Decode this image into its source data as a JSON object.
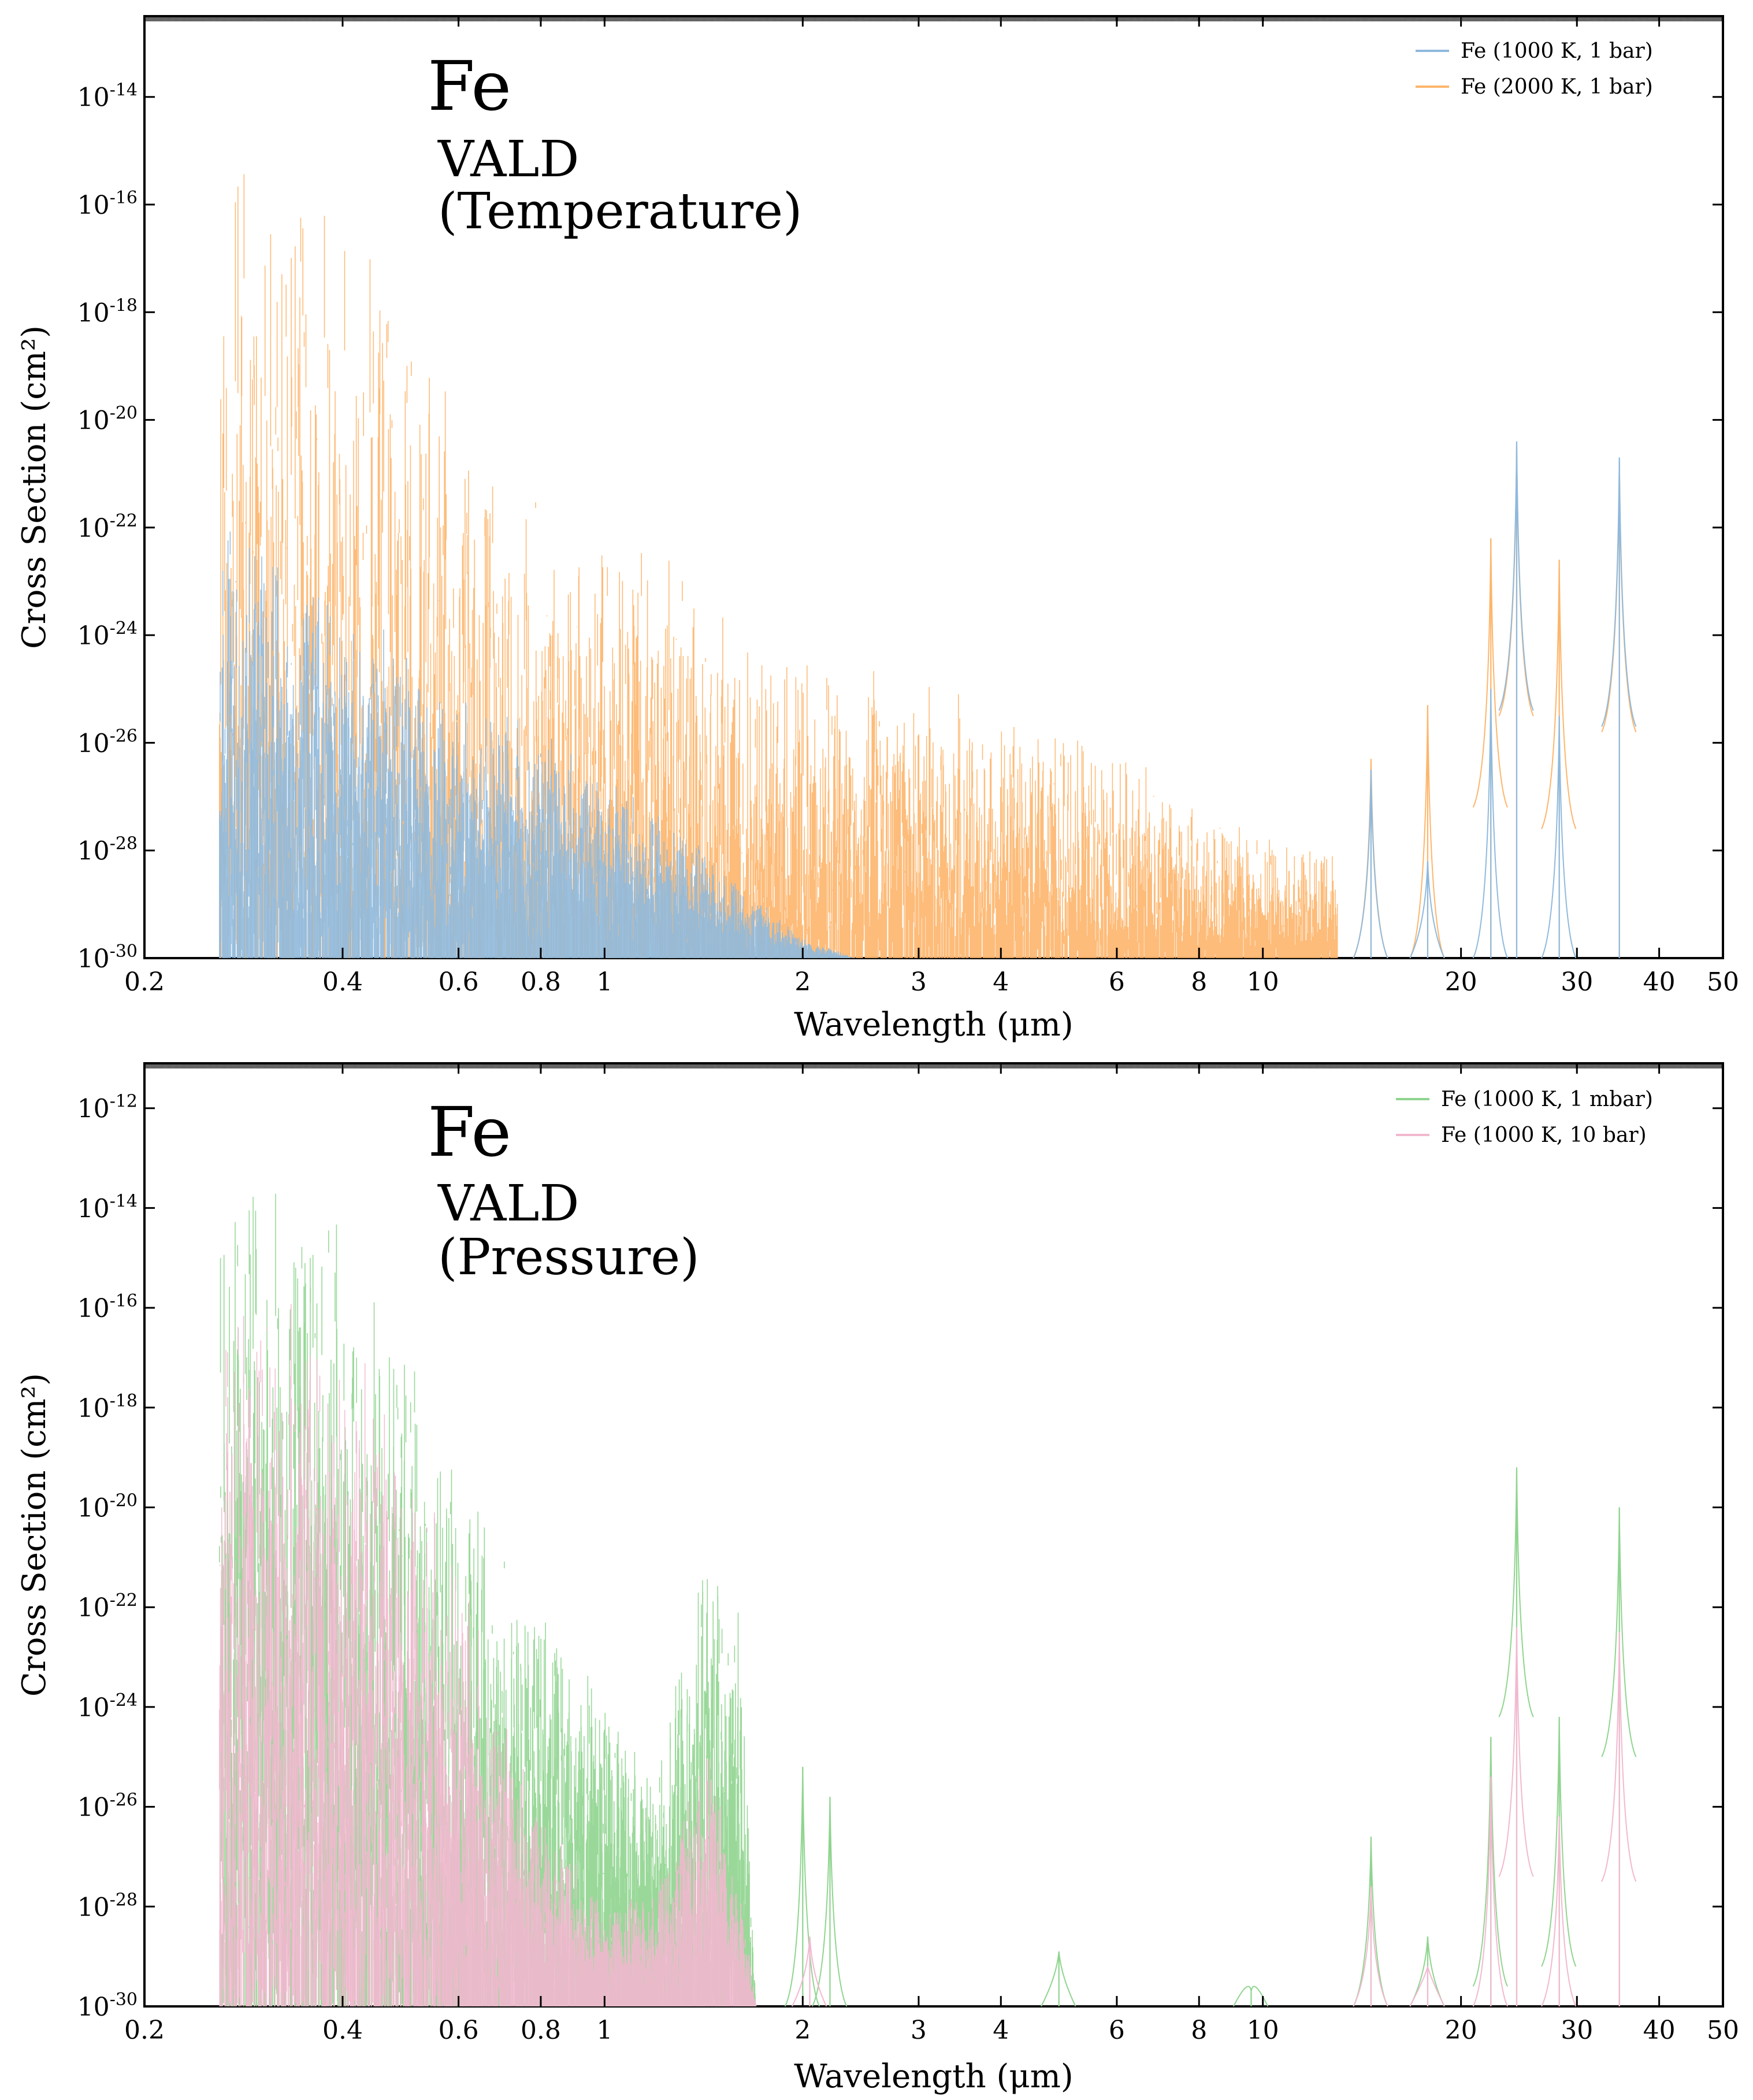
{
  "chart_data": [
    {
      "type": "line",
      "title": "Fe",
      "subtitle_line1": "VALD",
      "subtitle_line2": "(Temperature)",
      "xlabel": "Wavelength (μm)",
      "ylabel": "Cross Section (cm²)",
      "xscale": "log",
      "yscale": "log",
      "xlim": [
        0.2,
        50
      ],
      "ylim": [
        1e-30,
        1e-12
      ],
      "x_ticks": [
        0.2,
        0.4,
        0.6,
        0.8,
        1,
        2,
        3,
        4,
        6,
        8,
        10,
        20,
        30,
        40,
        50
      ],
      "x_tick_labels": [
        "0.2",
        "0.4",
        "0.6",
        "0.8",
        "1",
        "2",
        "3",
        "4",
        "6",
        "8",
        "10",
        "20",
        "30",
        "40",
        "50"
      ],
      "y_ticks": [
        1e-30,
        1e-28,
        1e-26,
        1e-24,
        1e-22,
        1e-20,
        1e-18,
        1e-16,
        1e-14
      ],
      "y_tick_exponents": [
        "-30",
        "-28",
        "-26",
        "-24",
        "-22",
        "-20",
        "-18",
        "-16",
        "-14"
      ],
      "legend": "top-right",
      "series": [
        {
          "name": "Fe (1000 K, 1 bar)",
          "color": "#8fb9dd",
          "envelope": [
            [
              0.26,
              -21.5
            ],
            [
              0.3,
              -22.2
            ],
            [
              0.35,
              -22.6
            ],
            [
              0.4,
              -23.2
            ],
            [
              0.5,
              -24.2
            ],
            [
              0.6,
              -25.0
            ],
            [
              0.8,
              -25.6
            ],
            [
              1.0,
              -26.6
            ],
            [
              1.3,
              -27.5
            ],
            [
              1.6,
              -28.6
            ],
            [
              2.0,
              -29.6
            ],
            [
              2.4,
              -30.0
            ]
          ],
          "peaks": [
            {
              "x": 14.6,
              "y": -26.5
            },
            {
              "x": 17.8,
              "y": -28.2
            },
            {
              "x": 22.2,
              "y": -25.0
            },
            {
              "x": 24.3,
              "y": -20.4
            },
            {
              "x": 28.2,
              "y": -25.5
            },
            {
              "x": 34.8,
              "y": -20.7
            }
          ]
        },
        {
          "name": "Fe (2000 K, 1 bar)",
          "color": "#fdb56b",
          "envelope": [
            [
              0.26,
              -14.0
            ],
            [
              0.3,
              -14.6
            ],
            [
              0.35,
              -15.0
            ],
            [
              0.4,
              -15.8
            ],
            [
              0.45,
              -16.8
            ],
            [
              0.5,
              -17.6
            ],
            [
              0.55,
              -18.6
            ],
            [
              0.6,
              -19.6
            ],
            [
              0.7,
              -20.6
            ],
            [
              0.8,
              -21.2
            ],
            [
              1.0,
              -21.9
            ],
            [
              1.2,
              -22.4
            ],
            [
              1.5,
              -23.2
            ],
            [
              2.0,
              -24.2
            ],
            [
              3.0,
              -24.7
            ],
            [
              4.0,
              -25.2
            ],
            [
              5.0,
              -25.7
            ],
            [
              6.5,
              -26.3
            ],
            [
              8.0,
              -27.1
            ],
            [
              10.0,
              -27.6
            ],
            [
              13.0,
              -28.0
            ]
          ],
          "peaks": [
            {
              "x": 14.6,
              "y": -26.3
            },
            {
              "x": 17.8,
              "y": -25.3
            },
            {
              "x": 22.2,
              "y": -22.2
            },
            {
              "x": 24.3,
              "y": -20.5
            },
            {
              "x": 28.2,
              "y": -22.6
            },
            {
              "x": 34.8,
              "y": -20.8
            }
          ]
        }
      ]
    },
    {
      "type": "line",
      "title": "Fe",
      "subtitle_line1": "VALD",
      "subtitle_line2": "(Pressure)",
      "xlabel": "Wavelength (μm)",
      "ylabel": "Cross Section (cm²)",
      "xscale": "log",
      "yscale": "log",
      "xlim": [
        0.2,
        50
      ],
      "ylim": [
        1e-30,
        1e-11
      ],
      "x_ticks": [
        0.2,
        0.4,
        0.6,
        0.8,
        1,
        2,
        3,
        4,
        6,
        8,
        10,
        20,
        30,
        40,
        50
      ],
      "x_tick_labels": [
        "0.2",
        "0.4",
        "0.6",
        "0.8",
        "1",
        "2",
        "3",
        "4",
        "6",
        "8",
        "10",
        "20",
        "30",
        "40",
        "50"
      ],
      "y_ticks": [
        1e-30,
        1e-28,
        1e-26,
        1e-24,
        1e-22,
        1e-20,
        1e-18,
        1e-16,
        1e-14,
        1e-12
      ],
      "y_tick_exponents": [
        "-30",
        "-28",
        "-26",
        "-24",
        "-22",
        "-20",
        "-18",
        "-16",
        "-14",
        "-12"
      ],
      "legend": "top-right",
      "series": [
        {
          "name": "Fe (1000 K, 1 mbar)",
          "color": "#8fd48f",
          "envelope": [
            [
              0.26,
              -12.2
            ],
            [
              0.3,
              -12.8
            ],
            [
              0.35,
              -13.6
            ],
            [
              0.4,
              -14.4
            ],
            [
              0.45,
              -15.6
            ],
            [
              0.5,
              -16.5
            ],
            [
              0.55,
              -18.0
            ],
            [
              0.6,
              -19.2
            ],
            [
              0.7,
              -21.0
            ],
            [
              0.8,
              -21.8
            ],
            [
              1.0,
              -23.6
            ],
            [
              1.2,
              -24.6
            ],
            [
              1.45,
              -20.2
            ],
            [
              1.6,
              -21.6
            ],
            [
              1.7,
              -30.0
            ]
          ],
          "peaks": [
            {
              "x": 2.0,
              "y": -25.2
            },
            {
              "x": 2.2,
              "y": -25.8
            },
            {
              "x": 4.9,
              "y": -28.9
            },
            {
              "x": 9.6,
              "y": -29.7
            },
            {
              "x": 14.6,
              "y": -26.6
            },
            {
              "x": 17.8,
              "y": -28.6
            },
            {
              "x": 22.2,
              "y": -24.6
            },
            {
              "x": 24.3,
              "y": -19.2
            },
            {
              "x": 28.2,
              "y": -24.2
            },
            {
              "x": 34.8,
              "y": -20.0
            }
          ]
        },
        {
          "name": "Fe (1000 K, 10 bar)",
          "color": "#f2b8cf",
          "envelope": [
            [
              0.26,
              -14.5
            ],
            [
              0.3,
              -15.2
            ],
            [
              0.35,
              -16.0
            ],
            [
              0.4,
              -16.2
            ],
            [
              0.45,
              -17.4
            ],
            [
              0.5,
              -18.4
            ],
            [
              0.6,
              -20.8
            ],
            [
              0.7,
              -24.0
            ],
            [
              0.8,
              -26.0
            ],
            [
              1.0,
              -28.0
            ],
            [
              1.2,
              -27.6
            ],
            [
              1.45,
              -24.4
            ],
            [
              1.6,
              -27.5
            ],
            [
              1.7,
              -30.0
            ]
          ],
          "peaks": [
            {
              "x": 2.05,
              "y": -28.6
            },
            {
              "x": 14.6,
              "y": -27.6
            },
            {
              "x": 17.8,
              "y": -29.2
            },
            {
              "x": 22.2,
              "y": -25.4
            },
            {
              "x": 24.3,
              "y": -22.4
            },
            {
              "x": 28.2,
              "y": -26.2
            },
            {
              "x": 34.8,
              "y": -22.5
            }
          ]
        }
      ]
    }
  ]
}
